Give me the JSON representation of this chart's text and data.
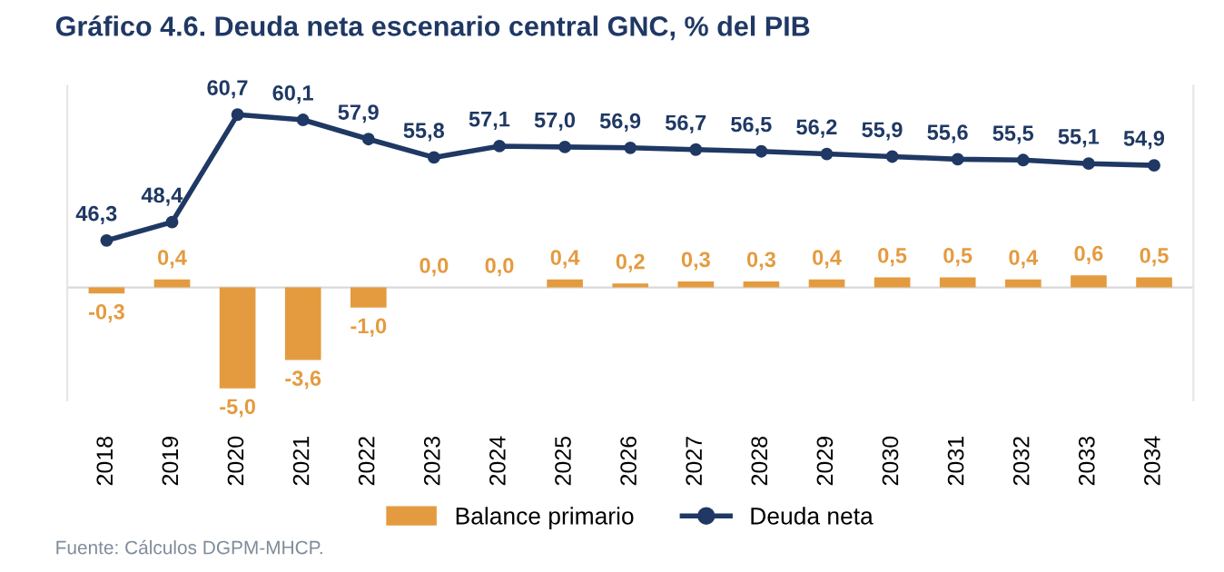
{
  "chart_data": {
    "type": "bar",
    "title": "Gráfico 4.6. Deuda neta escenario central GNC, % del PIB",
    "categories": [
      "2018",
      "2019",
      "2020",
      "2021",
      "2022",
      "2023",
      "2024",
      "2025",
      "2026",
      "2027",
      "2028",
      "2029",
      "2030",
      "2031",
      "2032",
      "2033",
      "2034"
    ],
    "series": [
      {
        "name": "Balance primario",
        "color": "#e49b3f",
        "values": [
          -0.3,
          0.4,
          -5.0,
          -3.6,
          -1.0,
          0.0,
          0.0,
          0.4,
          0.2,
          0.3,
          0.3,
          0.4,
          0.5,
          0.5,
          0.4,
          0.6,
          0.5
        ],
        "value_labels": [
          "-0,3",
          "0,4",
          "-5,0",
          "-3,6",
          "-1,0",
          "0,0",
          "0,0",
          "0,4",
          "0,2",
          "0,3",
          "0,3",
          "0,4",
          "0,5",
          "0,5",
          "0,4",
          "0,6",
          "0,5"
        ]
      },
      {
        "name": "Deuda neta",
        "type": "line",
        "axis": "y2",
        "color": "#1f3864",
        "values": [
          46.3,
          48.4,
          60.7,
          60.1,
          57.9,
          55.8,
          57.1,
          57.0,
          56.9,
          56.7,
          56.5,
          56.2,
          55.9,
          55.6,
          55.5,
          55.1,
          54.9
        ],
        "value_labels": [
          "46,3",
          "48,4",
          "60,7",
          "60,1",
          "57,9",
          "55,8",
          "57,1",
          "57,0",
          "56,9",
          "56,7",
          "56,5",
          "56,2",
          "55,9",
          "55,6",
          "55,5",
          "55,1",
          "54,9"
        ]
      }
    ],
    "ylim": [
      -5.6,
      10
    ],
    "y2lim": [
      28,
      64
    ],
    "tick_labels": "x",
    "marker": "circle",
    "grid": false,
    "legend": "bottom",
    "annotations": [
      "Fuente: Cálculos DGPM-MHCP."
    ]
  }
}
